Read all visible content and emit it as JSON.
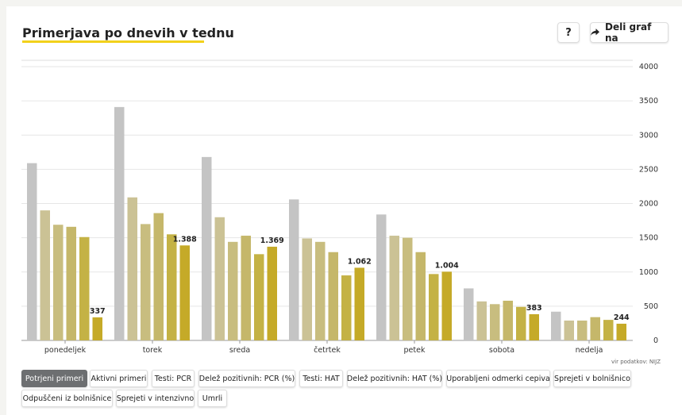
{
  "header": {
    "title": "Primerjava po dnevih v tednu",
    "help_label": "?",
    "share_label": "Deli graf na"
  },
  "source_note": "vir podatkov: NIJZ",
  "colors": {
    "accent": "#f2d11b",
    "series": [
      "#c4c4c4",
      "#cbc295",
      "#c8bd7f",
      "#c5b76a",
      "#c4b245",
      "#c5aa28"
    ]
  },
  "tabs": [
    {
      "label": "Potrjeni primeri",
      "active": true
    },
    {
      "label": "Aktivni primeri",
      "active": false
    },
    {
      "label": "Testi: PCR",
      "active": false
    },
    {
      "label": "Delež pozitivnih: PCR (%)",
      "active": false
    },
    {
      "label": "Testi: HAT",
      "active": false
    },
    {
      "label": "Delež pozitivnih: HAT (%)",
      "active": false
    },
    {
      "label": "Uporabljeni odmerki cepiva",
      "active": false
    },
    {
      "label": "Sprejeti v bolnišnico",
      "active": false
    },
    {
      "label": "Odpuščeni iz bolnišnice",
      "active": false
    },
    {
      "label": "Sprejeti v intenzivno",
      "active": false
    },
    {
      "label": "Umrli",
      "active": false
    }
  ],
  "chart_data": {
    "type": "bar",
    "categories": [
      "ponedeljek",
      "torek",
      "sreda",
      "četrtek",
      "petek",
      "sobota",
      "nedelja"
    ],
    "series": [
      {
        "values": [
          2590,
          3410,
          2680,
          2060,
          1840,
          760,
          420
        ]
      },
      {
        "values": [
          1900,
          2090,
          1800,
          1490,
          1530,
          570,
          290
        ]
      },
      {
        "values": [
          1690,
          1700,
          1440,
          1440,
          1500,
          530,
          290
        ]
      },
      {
        "values": [
          1660,
          1860,
          1530,
          1290,
          1290,
          580,
          340
        ]
      },
      {
        "values": [
          1510,
          1550,
          1260,
          950,
          970,
          490,
          300
        ]
      },
      {
        "values": [
          337,
          1388,
          1369,
          1062,
          1004,
          383,
          244
        ]
      }
    ],
    "data_labels": [
      "337",
      "1.388",
      "1.369",
      "1.062",
      "1.004",
      "383",
      "244"
    ],
    "y_ticks": [
      0,
      500,
      1000,
      1500,
      2000,
      2500,
      3000,
      3500,
      4000
    ],
    "ylim": [
      0,
      4000
    ],
    "grid": true,
    "y_axis_position": "right"
  }
}
